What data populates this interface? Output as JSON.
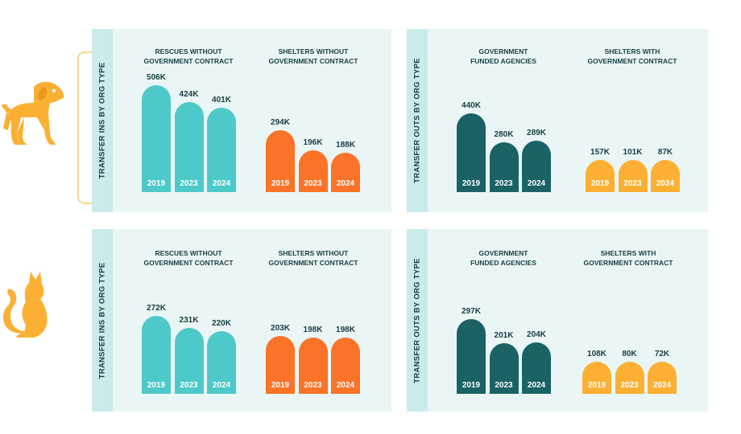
{
  "colors": {
    "teal_light": "#4ec9c9",
    "orange": "#fa7328",
    "teal_dark": "#1b6265",
    "yellow": "#fbb033",
    "icon": "#fbb033"
  },
  "icons": {
    "row1": "dog-icon",
    "row2": "cat-icon"
  },
  "panels": [
    {
      "label": "TRANSFER INS BY ORG TYPE",
      "groups": [
        {
          "title1": "RESCUES WITHOUT",
          "title2": "GOVERNMENT CONTRACT"
        },
        {
          "title1": "SHELTERS WITHOUT",
          "title2": "GOVERNMENT CONTRACT"
        }
      ]
    },
    {
      "label": "TRANSFER OUTS BY ORG TYPE",
      "groups": [
        {
          "title1": "GOVERNMENT",
          "title2": "FUNDED AGENCIES"
        },
        {
          "title1": "SHELTERS WITH",
          "title2": "GOVERNMENT CONTRACT"
        }
      ]
    },
    {
      "label": "TRANSFER INS BY ORG TYPE",
      "groups": [
        {
          "title1": "RESCUES WITHOUT",
          "title2": "GOVERNMENT CONTRACT"
        },
        {
          "title1": "SHELTERS WITHOUT",
          "title2": "GOVERNMENT CONTRACT"
        }
      ]
    },
    {
      "label": "TRANSFER OUTS BY ORG TYPE",
      "groups": [
        {
          "title1": "GOVERNMENT",
          "title2": "FUNDED AGENCIES"
        },
        {
          "title1": "SHELTERS WITH",
          "title2": "GOVERNMENT CONTRACT"
        }
      ]
    }
  ],
  "chart_data": [
    {
      "type": "bar",
      "categories": [
        "2019",
        "2023",
        "2024"
      ],
      "series": [
        {
          "name": "RESCUES WITHOUT GOVERNMENT CONTRACT",
          "values": [
            506,
            424,
            401
          ],
          "labels": [
            "506K",
            "424K",
            "401K"
          ]
        },
        {
          "name": "SHELTERS WITHOUT GOVERNMENT CONTRACT",
          "values": [
            294,
            196,
            188
          ],
          "labels": [
            "294K",
            "196K",
            "188K"
          ]
        }
      ]
    },
    {
      "type": "bar",
      "categories": [
        "2019",
        "2023",
        "2024"
      ],
      "series": [
        {
          "name": "GOVERNMENT FUNDED AGENCIES",
          "values": [
            440,
            280,
            289
          ],
          "labels": [
            "440K",
            "280K",
            "289K"
          ]
        },
        {
          "name": "SHELTERS WITH GOVERNMENT CONTRACT",
          "values": [
            157,
            101,
            87
          ],
          "labels": [
            "157K",
            "101K",
            "87K"
          ]
        }
      ]
    },
    {
      "type": "bar",
      "categories": [
        "2019",
        "2023",
        "2024"
      ],
      "series": [
        {
          "name": "RESCUES WITHOUT GOVERNMENT CONTRACT",
          "values": [
            272,
            231,
            220
          ],
          "labels": [
            "272K",
            "231K",
            "220K"
          ]
        },
        {
          "name": "SHELTERS WITHOUT GOVERNMENT CONTRACT",
          "values": [
            203,
            198,
            198
          ],
          "labels": [
            "203K",
            "198K",
            "198K"
          ]
        }
      ]
    },
    {
      "type": "bar",
      "categories": [
        "2019",
        "2023",
        "2024"
      ],
      "series": [
        {
          "name": "GOVERNMENT FUNDED AGENCIES",
          "values": [
            297,
            201,
            204
          ],
          "labels": [
            "297K",
            "201K",
            "204K"
          ]
        },
        {
          "name": "SHELTERS WITH GOVERNMENT CONTRACT",
          "values": [
            108,
            80,
            72
          ],
          "labels": [
            "108K",
            "80K",
            "72K"
          ]
        }
      ]
    }
  ]
}
